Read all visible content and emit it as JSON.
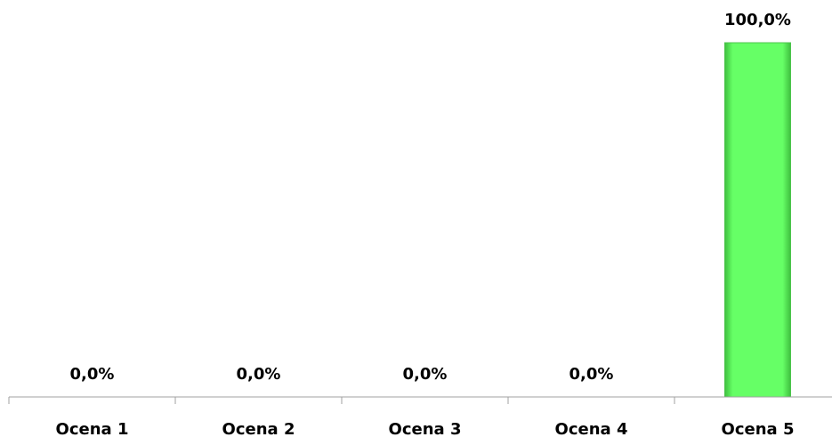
{
  "chart_data": {
    "type": "bar",
    "categories": [
      "Ocena 1",
      "Ocena 2",
      "Ocena 3",
      "Ocena 4",
      "Ocena 5"
    ],
    "values": [
      0.0,
      0.0,
      0.0,
      0.0,
      100.0
    ],
    "data_labels": [
      "0,0%",
      "0,0%",
      "0,0%",
      "0,0%",
      "100,0%"
    ],
    "ylim": [
      0,
      100
    ],
    "grid": false,
    "legend": "none",
    "bar_color": "#66ff66"
  }
}
